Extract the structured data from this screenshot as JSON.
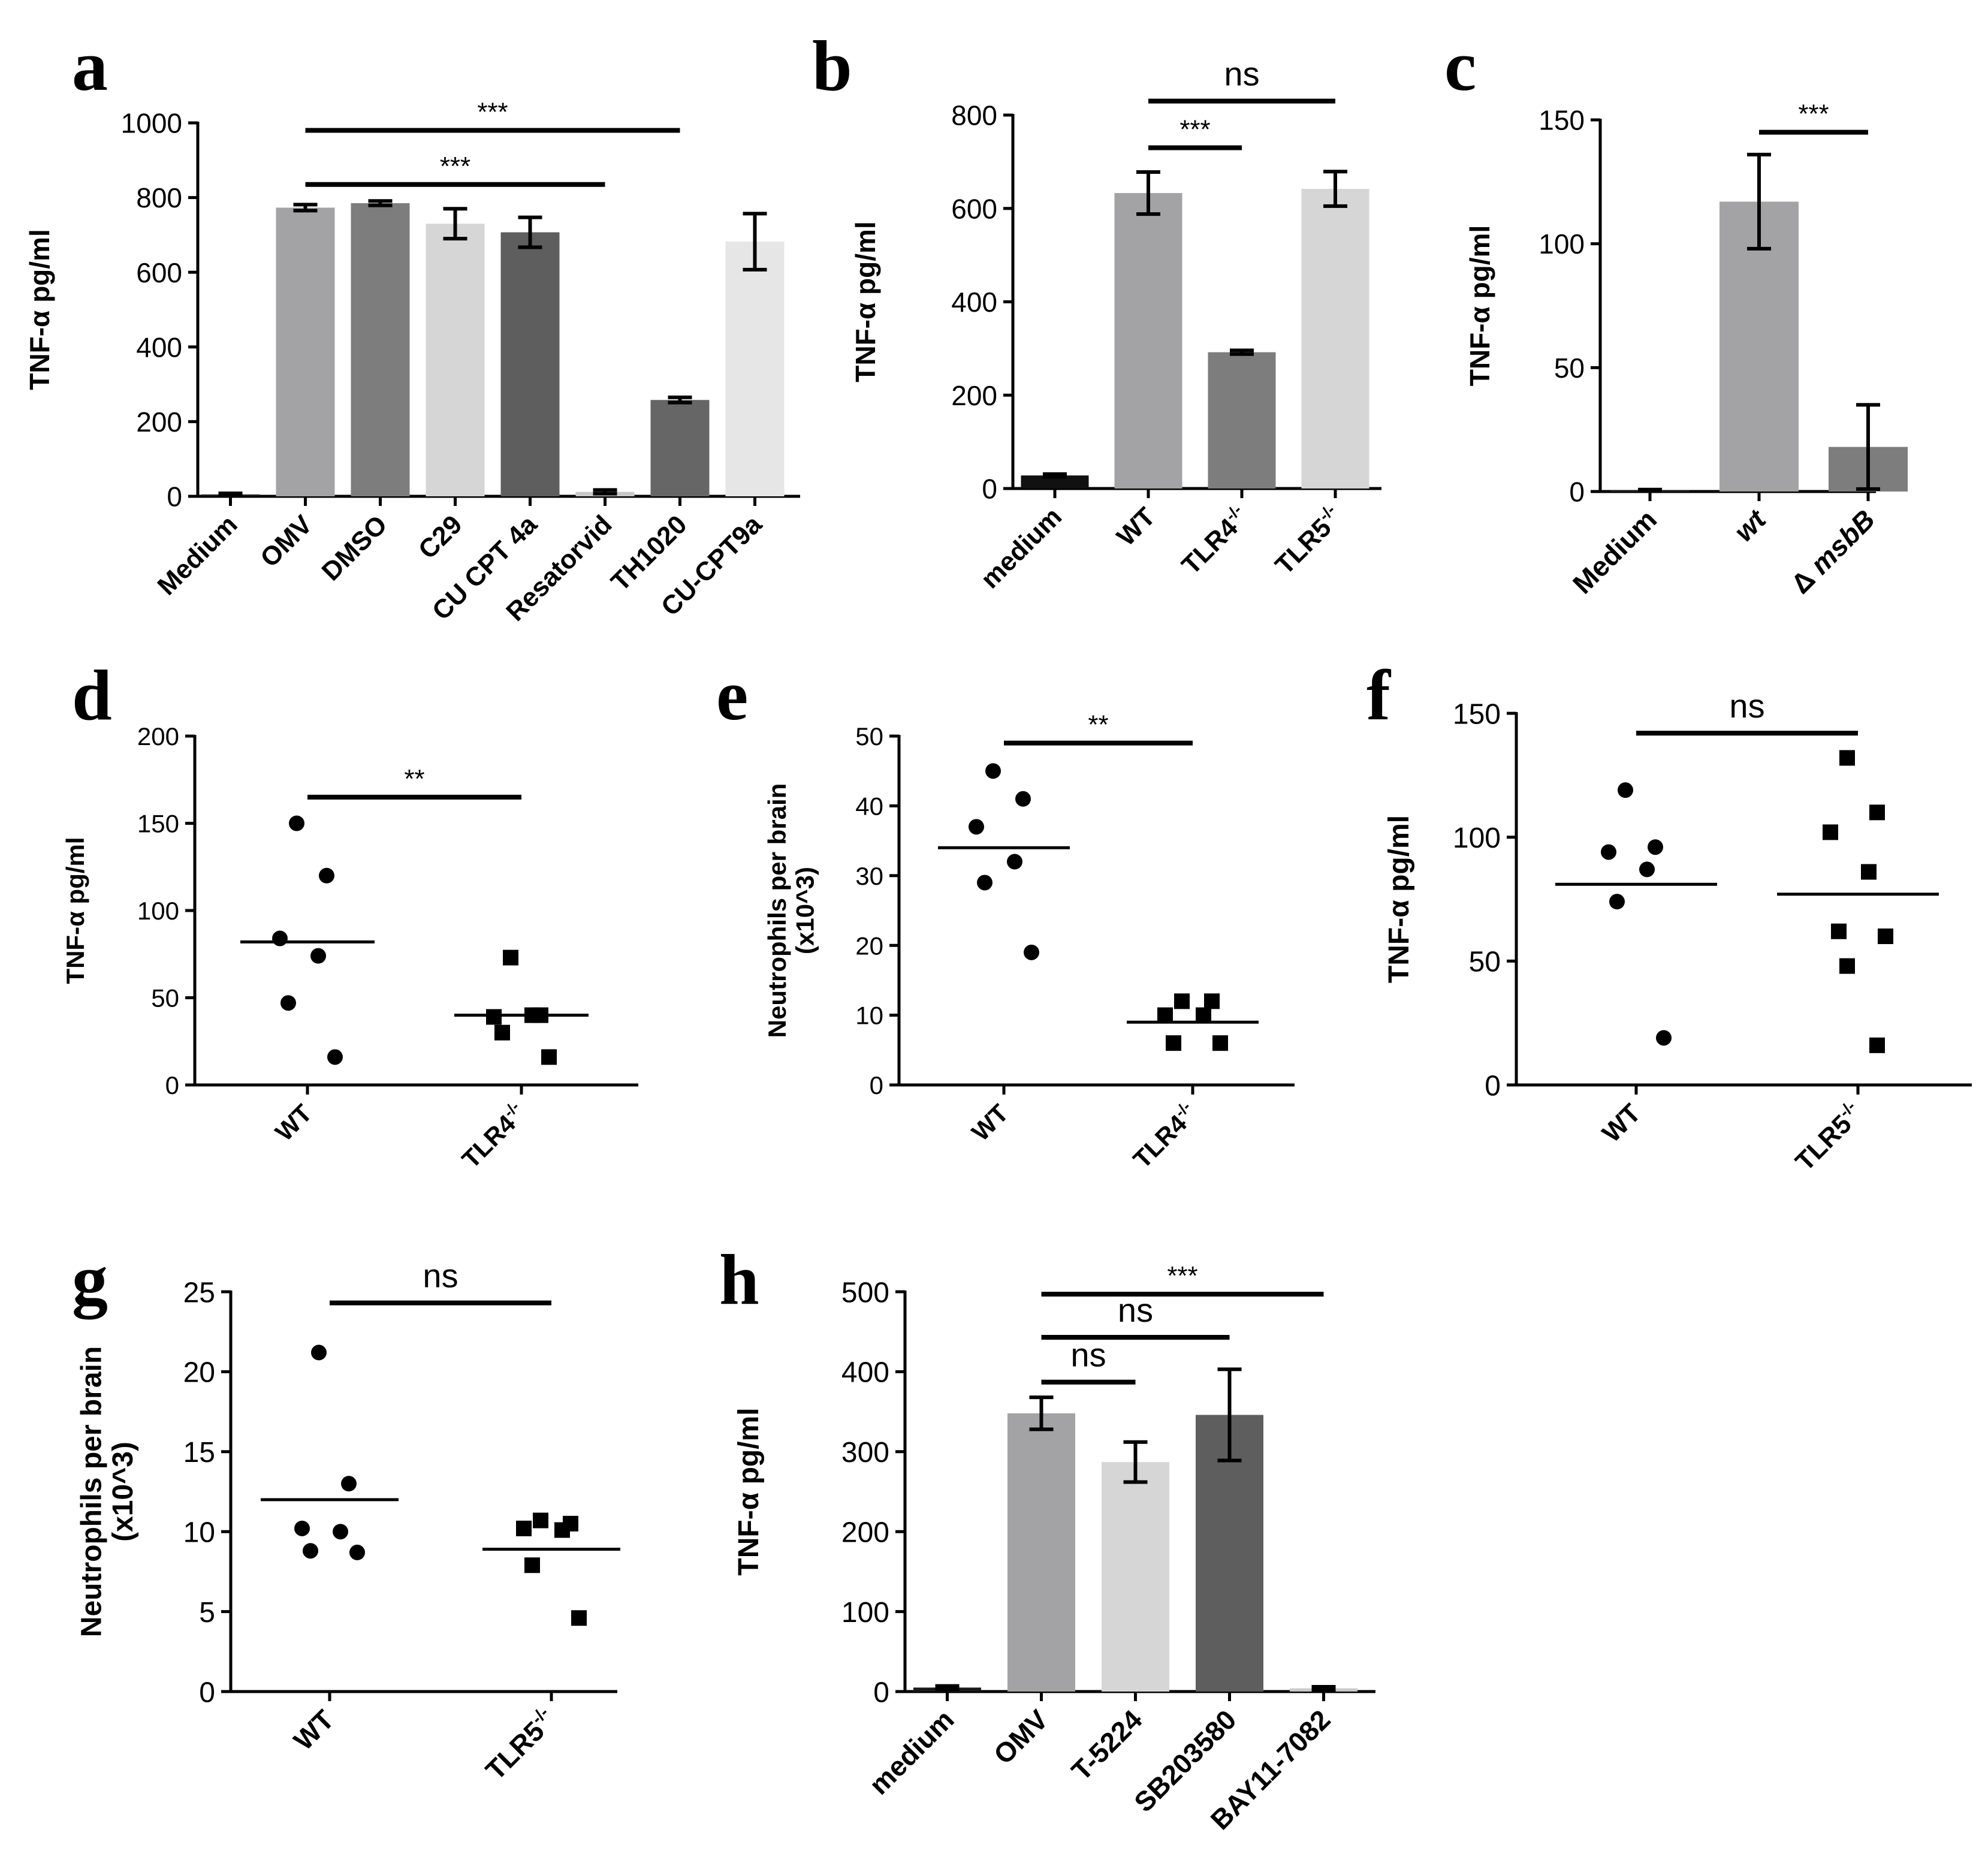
{
  "colors": {
    "black": "#000000",
    "dark": "#666666",
    "mid_dark": "#7d7d7d",
    "mid": "#a3a3a5",
    "light": "#d6d6d6",
    "lighter": "#e6e6e6"
  },
  "chart_data": [
    {
      "id": "a",
      "type": "bar",
      "panel_label": "a",
      "ylabel": "TNF-α pg/ml",
      "ylim": [
        0,
        1000
      ],
      "yticks": [
        0,
        200,
        400,
        600,
        800,
        1000
      ],
      "categories": [
        "Medium",
        "OMV",
        "DMSO",
        "C29",
        "CU CPT 4a",
        "Resatorvid",
        "TH1020",
        "CU-CPT9a"
      ],
      "values": [
        5,
        773,
        785,
        730,
        707,
        12,
        258,
        682
      ],
      "errors": [
        3,
        8,
        6,
        40,
        40,
        5,
        7,
        75
      ],
      "bar_colors": [
        "#1a1a1a",
        "#a3a3a5",
        "#7d7d7d",
        "#d6d6d6",
        "#5e5e5e",
        "#c9c9c9",
        "#666666",
        "#e6e6e6"
      ],
      "annotations": [
        {
          "text": "***",
          "from": 1,
          "to": 6,
          "y": 980
        },
        {
          "text": "***",
          "from": 1,
          "to": 5,
          "y": 835
        }
      ]
    },
    {
      "id": "b",
      "type": "bar",
      "panel_label": "b",
      "ylabel": "TNF-α pg/ml",
      "ylim": [
        0,
        800
      ],
      "yticks": [
        0,
        200,
        400,
        600,
        800
      ],
      "categories": [
        "medium",
        "WT",
        "TLR4-/-",
        "TLR5-/-"
      ],
      "values": [
        28,
        633,
        292,
        642
      ],
      "errors": [
        3,
        45,
        4,
        37
      ],
      "bar_colors": [
        "#111111",
        "#a3a3a5",
        "#7d7d7d",
        "#d6d6d6"
      ],
      "annotations": [
        {
          "text": "***",
          "from": 1,
          "to": 2,
          "y": 730
        },
        {
          "text": "ns",
          "from": 1,
          "to": 3,
          "y": 830
        }
      ]
    },
    {
      "id": "c",
      "type": "bar",
      "panel_label": "c",
      "ylabel": "TNF-α pg/ml",
      "ylim": [
        0,
        150
      ],
      "yticks": [
        0,
        50,
        100,
        150
      ],
      "categories": [
        "Medium",
        "wt",
        "Δ msbB"
      ],
      "values": [
        0.5,
        117,
        18
      ],
      "errors": [
        0.3,
        19,
        17
      ],
      "bar_colors": [
        "#1a1a1a",
        "#a3a3a5",
        "#7d7d7d"
      ],
      "annotations": [
        {
          "text": "***",
          "from": 1,
          "to": 2,
          "y": 145
        }
      ]
    },
    {
      "id": "d",
      "type": "scatter",
      "panel_label": "d",
      "ylabel": "TNF-α pg/ml",
      "ylim": [
        0,
        200
      ],
      "yticks": [
        0,
        50,
        100,
        150,
        200
      ],
      "categories": [
        "WT",
        "TLR4-/-"
      ],
      "series": [
        {
          "name": "WT",
          "marker": "circle",
          "values": [
            150,
            120,
            84,
            74,
            47,
            16
          ],
          "mean": 82
        },
        {
          "name": "TLR4-/-",
          "marker": "square",
          "values": [
            73,
            40,
            39,
            40,
            30,
            16
          ],
          "mean": 40
        }
      ],
      "annotations": [
        {
          "text": "**",
          "from": 0,
          "to": 1,
          "y": 165
        }
      ]
    },
    {
      "id": "e",
      "type": "scatter",
      "panel_label": "e",
      "ylabel": "Neutrophils per brain (x10^3)",
      "ylim": [
        0,
        50
      ],
      "yticks": [
        0,
        10,
        20,
        30,
        40,
        50
      ],
      "categories": [
        "WT",
        "TLR4-/-"
      ],
      "series": [
        {
          "name": "WT",
          "marker": "circle",
          "values": [
            45,
            41,
            37,
            32,
            29,
            19
          ],
          "mean": 34
        },
        {
          "name": "TLR4-/-",
          "marker": "square",
          "values": [
            12,
            12,
            10,
            10,
            6,
            6
          ],
          "mean": 9
        }
      ],
      "annotations": [
        {
          "text": "**",
          "from": 0,
          "to": 1,
          "y": 49
        }
      ]
    },
    {
      "id": "f",
      "type": "scatter",
      "panel_label": "f",
      "ylabel": "TNF-α pg/ml",
      "ylim": [
        0,
        150
      ],
      "yticks": [
        0,
        50,
        100,
        150
      ],
      "categories": [
        "WT",
        "TLR5-/-"
      ],
      "series": [
        {
          "name": "WT",
          "marker": "circle",
          "values": [
            119,
            96,
            94,
            87,
            74,
            19
          ],
          "mean": 81
        },
        {
          "name": "TLR5-/-",
          "marker": "square",
          "values": [
            132,
            110,
            102,
            86,
            62,
            60,
            48,
            16
          ],
          "mean": 77
        }
      ],
      "annotations": [
        {
          "text": "ns",
          "from": 0,
          "to": 1,
          "y": 142
        }
      ]
    },
    {
      "id": "g",
      "type": "scatter",
      "panel_label": "g",
      "ylabel": "Neutrophils per brain (x10^3)",
      "ylim": [
        0,
        25
      ],
      "yticks": [
        0,
        5,
        10,
        15,
        20,
        25
      ],
      "categories": [
        "WT",
        "TLR5-/-"
      ],
      "series": [
        {
          "name": "WT",
          "marker": "circle",
          "values": [
            21.2,
            13,
            10.2,
            10,
            8.8,
            8.7
          ],
          "mean": 12
        },
        {
          "name": "TLR5-/-",
          "marker": "square",
          "values": [
            10.7,
            10.5,
            10.2,
            10.1,
            7.9,
            4.6
          ],
          "mean": 8.9
        }
      ],
      "annotations": [
        {
          "text": "ns",
          "from": 0,
          "to": 1,
          "y": 24.3
        }
      ]
    },
    {
      "id": "h",
      "type": "bar",
      "panel_label": "h",
      "ylabel": "TNF-α pg/ml",
      "ylim": [
        0,
        500
      ],
      "yticks": [
        0,
        100,
        200,
        300,
        400,
        500
      ],
      "categories": [
        "medium",
        "OMV",
        "T-5224",
        "SB203580",
        "BAY11-7082"
      ],
      "values": [
        5,
        348,
        287,
        346,
        4
      ],
      "errors": [
        2,
        20,
        25,
        57,
        2
      ],
      "bar_colors": [
        "#1a1a1a",
        "#a3a3a5",
        "#d6d6d6",
        "#5e5e5e",
        "#c9c9c9"
      ],
      "annotations": [
        {
          "text": "***",
          "from": 1,
          "to": 4,
          "y": 497
        },
        {
          "text": "ns",
          "from": 1,
          "to": 3,
          "y": 443
        },
        {
          "text": "ns",
          "from": 1,
          "to": 2,
          "y": 387
        }
      ]
    }
  ]
}
